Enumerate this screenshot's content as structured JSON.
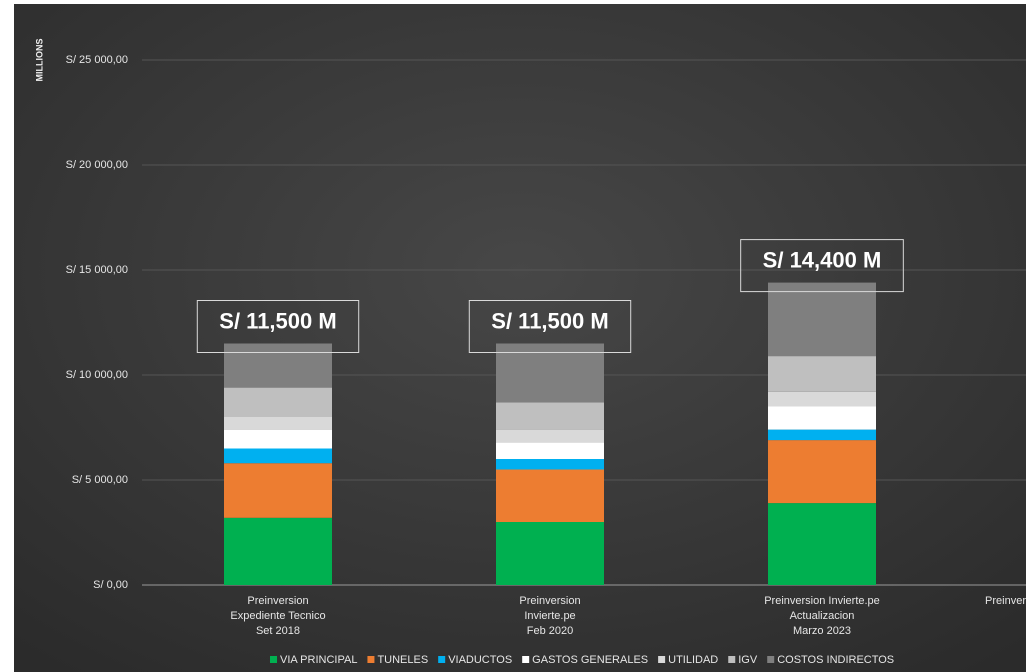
{
  "chart_data": {
    "type": "stacked_bar",
    "y_axis_label": "MILLIONS",
    "categories": [
      [
        "Preinversion",
        "Expediente Tecnico",
        "Set 2018"
      ],
      [
        "Preinversion",
        "Invierte.pe",
        "Feb 2020"
      ],
      [
        "Preinversion Invierte.pe",
        "Actualizacion",
        "Marzo 2023"
      ],
      [
        "Preinver"
      ]
    ],
    "series": [
      {
        "name": "VIA PRINCIPAL",
        "color": "#00b050",
        "values": [
          3200,
          3000,
          3900,
          null
        ]
      },
      {
        "name": "TUNELES",
        "color": "#ed7d31",
        "values": [
          2600,
          2500,
          3000,
          null
        ]
      },
      {
        "name": "VIADUCTOS",
        "color": "#00b0f0",
        "values": [
          700,
          500,
          500,
          null
        ]
      },
      {
        "name": "GASTOS GENERALES",
        "color": "#ffffff",
        "values": [
          900,
          800,
          1100,
          null
        ]
      },
      {
        "name": "UTILIDAD",
        "color": "#d9d9d9",
        "values": [
          600,
          600,
          700,
          null
        ]
      },
      {
        "name": "IGV",
        "color": "#bfbfbf",
        "values": [
          1400,
          1300,
          1700,
          null
        ]
      },
      {
        "name": "COSTOS INDIRECTOS",
        "color": "#7f7f7f",
        "values": [
          2100,
          2800,
          3500,
          null
        ]
      }
    ],
    "totals": [
      11500,
      11500,
      14400
    ],
    "total_labels": [
      "S/ 11,500 M",
      "S/ 11,500 M",
      "S/ 14,400 M"
    ],
    "ylim": [
      0,
      25000
    ],
    "yticks": [
      {
        "value": 0,
        "label": "S/  0,00"
      },
      {
        "value": 5000,
        "label": "S/ 5 000,00"
      },
      {
        "value": 10000,
        "label": "S/ 10 000,00"
      },
      {
        "value": 15000,
        "label": "S/ 15 000,00"
      },
      {
        "value": 20000,
        "label": "S/ 20 000,00"
      },
      {
        "value": 25000,
        "label": "S/ 25 000,00"
      }
    ],
    "grid": true,
    "legend": "bottom"
  }
}
